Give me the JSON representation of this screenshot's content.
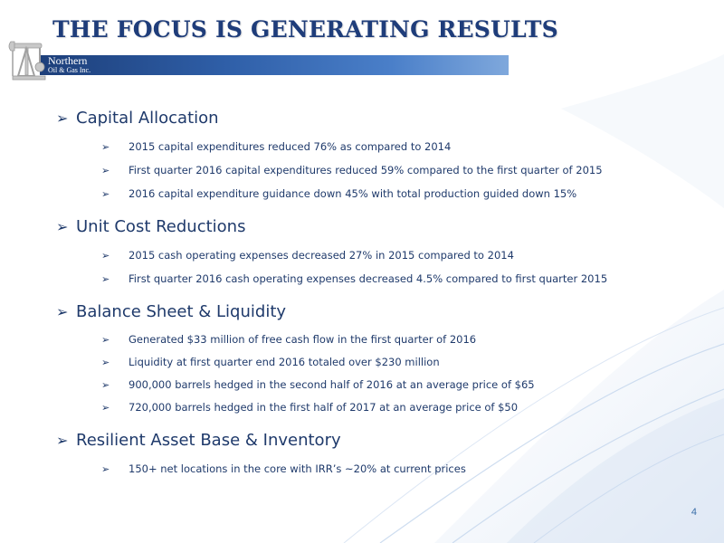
{
  "slide": {
    "title": "THE FOCUS IS GENERATING RESULTS",
    "page_number": "4",
    "logo": {
      "line1": "Northern",
      "line2": "Oil & Gas Inc."
    },
    "accent_color": "#1f3d7a",
    "sections": [
      {
        "heading": "Capital Allocation",
        "bullets": [
          "2015 capital expenditures reduced 76% as compared to 2014",
          "First quarter 2016 capital expenditures reduced 59% compared to the first quarter of 2015",
          "2016 capital expenditure guidance down 45% with total production guided down 15%"
        ]
      },
      {
        "heading": "Unit Cost Reductions",
        "bullets": [
          "2015 cash operating expenses decreased 27% in 2015 compared to 2014",
          "First quarter 2016 cash operating expenses decreased 4.5% compared to first quarter 2015"
        ]
      },
      {
        "heading": "Balance Sheet & Liquidity",
        "bullets": [
          "Generated $33 million of free cash flow in the first quarter of 2016",
          "Liquidity at first quarter end 2016 totaled over $230 million",
          "900,000 barrels hedged in the second half of 2016 at an average price of $65",
          "720,000 barrels hedged in the first half of 2017 at an average price of $50"
        ]
      },
      {
        "heading": "Resilient Asset Base & Inventory",
        "bullets": [
          "150+ net locations in the core with IRR’s ~20% at current prices"
        ]
      }
    ],
    "bullet_glyph": "➢"
  }
}
